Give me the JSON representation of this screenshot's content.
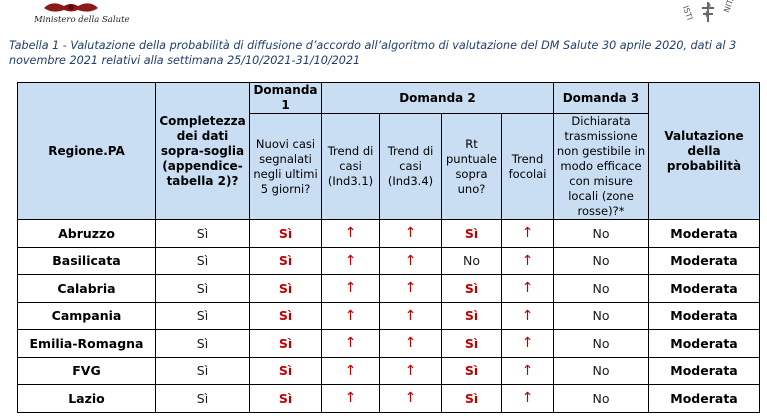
{
  "header": {
    "ministry_label": "Ministero della Salute"
  },
  "caption": "Tabella 1 - Valutazione della probabilità di diffusione d’accordo all’algoritmo di valutazione del DM Salute 30 aprile 2020, dati al 3 novembre 2021 relativi alla settimana 25/10/2021-31/10/2021",
  "table": {
    "col_region": "Regione.PA",
    "col_completeness": "Completezza dei dati sopra-soglia (appendice-tabella 2)?",
    "group_d1": "Domanda 1",
    "group_d2": "Domanda 2",
    "group_d3": "Domanda 3",
    "col_eval": "Valutazione della probabilità",
    "sub_new_cases": "Nuovi casi segnalati negli ultimi 5 giorni?",
    "sub_trend31": "Trend di casi (Ind3.1)",
    "sub_trend34": "Trend di casi (Ind3.4)",
    "sub_rt": "Rt puntuale sopra uno?",
    "sub_focolai": "Trend focolai",
    "sub_transmission": "Dichiarata trasmissione non gestibile in modo efficace con misure locali (zone rosse)?*",
    "rows": [
      {
        "region": "Abruzzo",
        "completeness": "Sì",
        "d1": "Sì",
        "t31": "↑",
        "t34": "↑",
        "rt": "Sì",
        "rt_red": true,
        "foc": "↑",
        "d3": "No",
        "eval": "Moderata"
      },
      {
        "region": "Basilicata",
        "completeness": "Sì",
        "d1": "Sì",
        "t31": "↑",
        "t34": "↑",
        "rt": "No",
        "rt_red": false,
        "foc": "↑",
        "d3": "No",
        "eval": "Moderata"
      },
      {
        "region": "Calabria",
        "completeness": "Sì",
        "d1": "Sì",
        "t31": "↑",
        "t34": "↑",
        "rt": "Sì",
        "rt_red": true,
        "foc": "↑",
        "d3": "No",
        "eval": "Moderata"
      },
      {
        "region": "Campania",
        "completeness": "Sì",
        "d1": "Sì",
        "t31": "↑",
        "t34": "↑",
        "rt": "Sì",
        "rt_red": true,
        "foc": "↑",
        "d3": "No",
        "eval": "Moderata"
      },
      {
        "region": "Emilia-Romagna",
        "completeness": "Sì",
        "d1": "Sì",
        "t31": "↑",
        "t34": "↑",
        "rt": "Sì",
        "rt_red": true,
        "foc": "↑",
        "d3": "No",
        "eval": "Moderata"
      },
      {
        "region": "FVG",
        "completeness": "Sì",
        "d1": "Sì",
        "t31": "↑",
        "t34": "↑",
        "rt": "Sì",
        "rt_red": true,
        "foc": "↑",
        "d3": "No",
        "eval": "Moderata"
      },
      {
        "region": "Lazio",
        "completeness": "Sì",
        "d1": "Sì",
        "t31": "↑",
        "t34": "↑",
        "rt": "Sì",
        "rt_red": true,
        "foc": "↑",
        "d3": "No",
        "eval": "Moderata"
      }
    ]
  }
}
